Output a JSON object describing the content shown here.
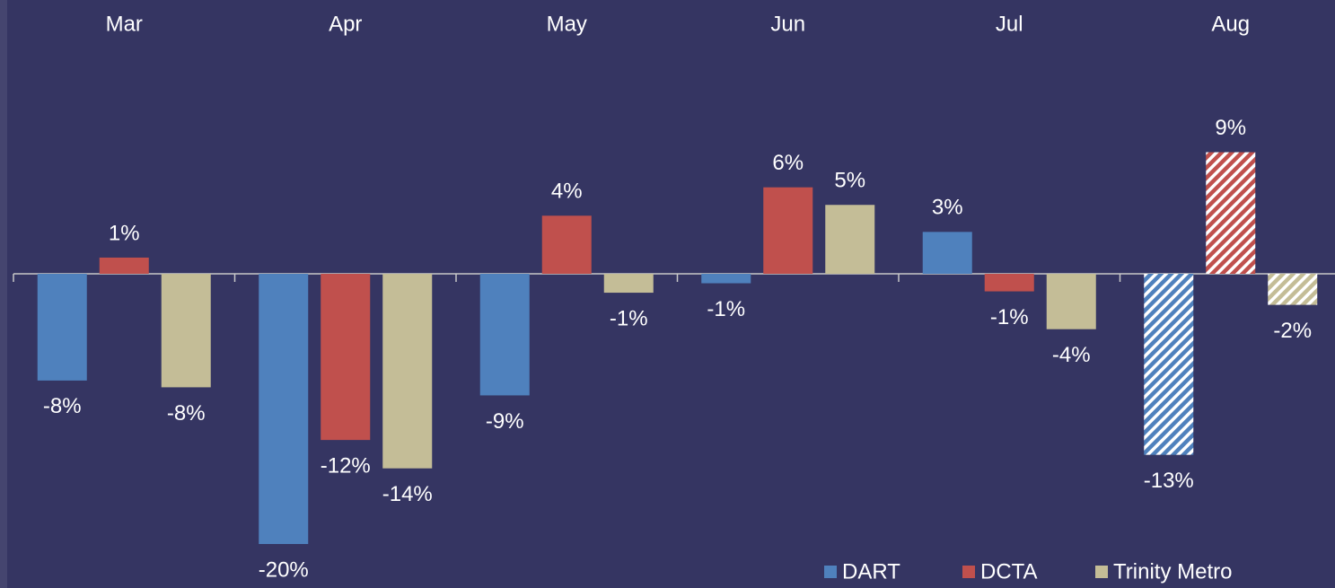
{
  "chart_data": {
    "type": "bar",
    "categories": [
      "Mar",
      "Apr",
      "May",
      "Jun",
      "Jul",
      "Aug"
    ],
    "series": [
      {
        "name": "DART",
        "color": "#4f81bd",
        "values": [
          -7.9,
          -20,
          -9.0,
          -0.7,
          3.1,
          -13.4
        ],
        "value_labels": [
          "-8%",
          "-20%",
          "-9%",
          "-1%",
          "3%",
          "-13%"
        ]
      },
      {
        "name": "DCTA",
        "color": "#c0504d",
        "values": [
          1.2,
          -12.3,
          4.3,
          6.4,
          -1.3,
          9.0
        ],
        "value_labels": [
          "1%",
          "-12%",
          "4%",
          "6%",
          "-1%",
          "9%"
        ]
      },
      {
        "name": "Trinity Metro",
        "color": "#c4bd97",
        "values": [
          -8.4,
          -14.4,
          -1.4,
          5.1,
          -4.1,
          -2.3
        ],
        "value_labels": [
          "-8%",
          "-14%",
          "-1%",
          "5%",
          "-4%",
          "-2%"
        ]
      }
    ],
    "ylim": [
      -22,
      12
    ],
    "hatched": [
      false,
      false,
      false,
      false,
      false,
      true
    ],
    "legend": "bottom-right"
  }
}
